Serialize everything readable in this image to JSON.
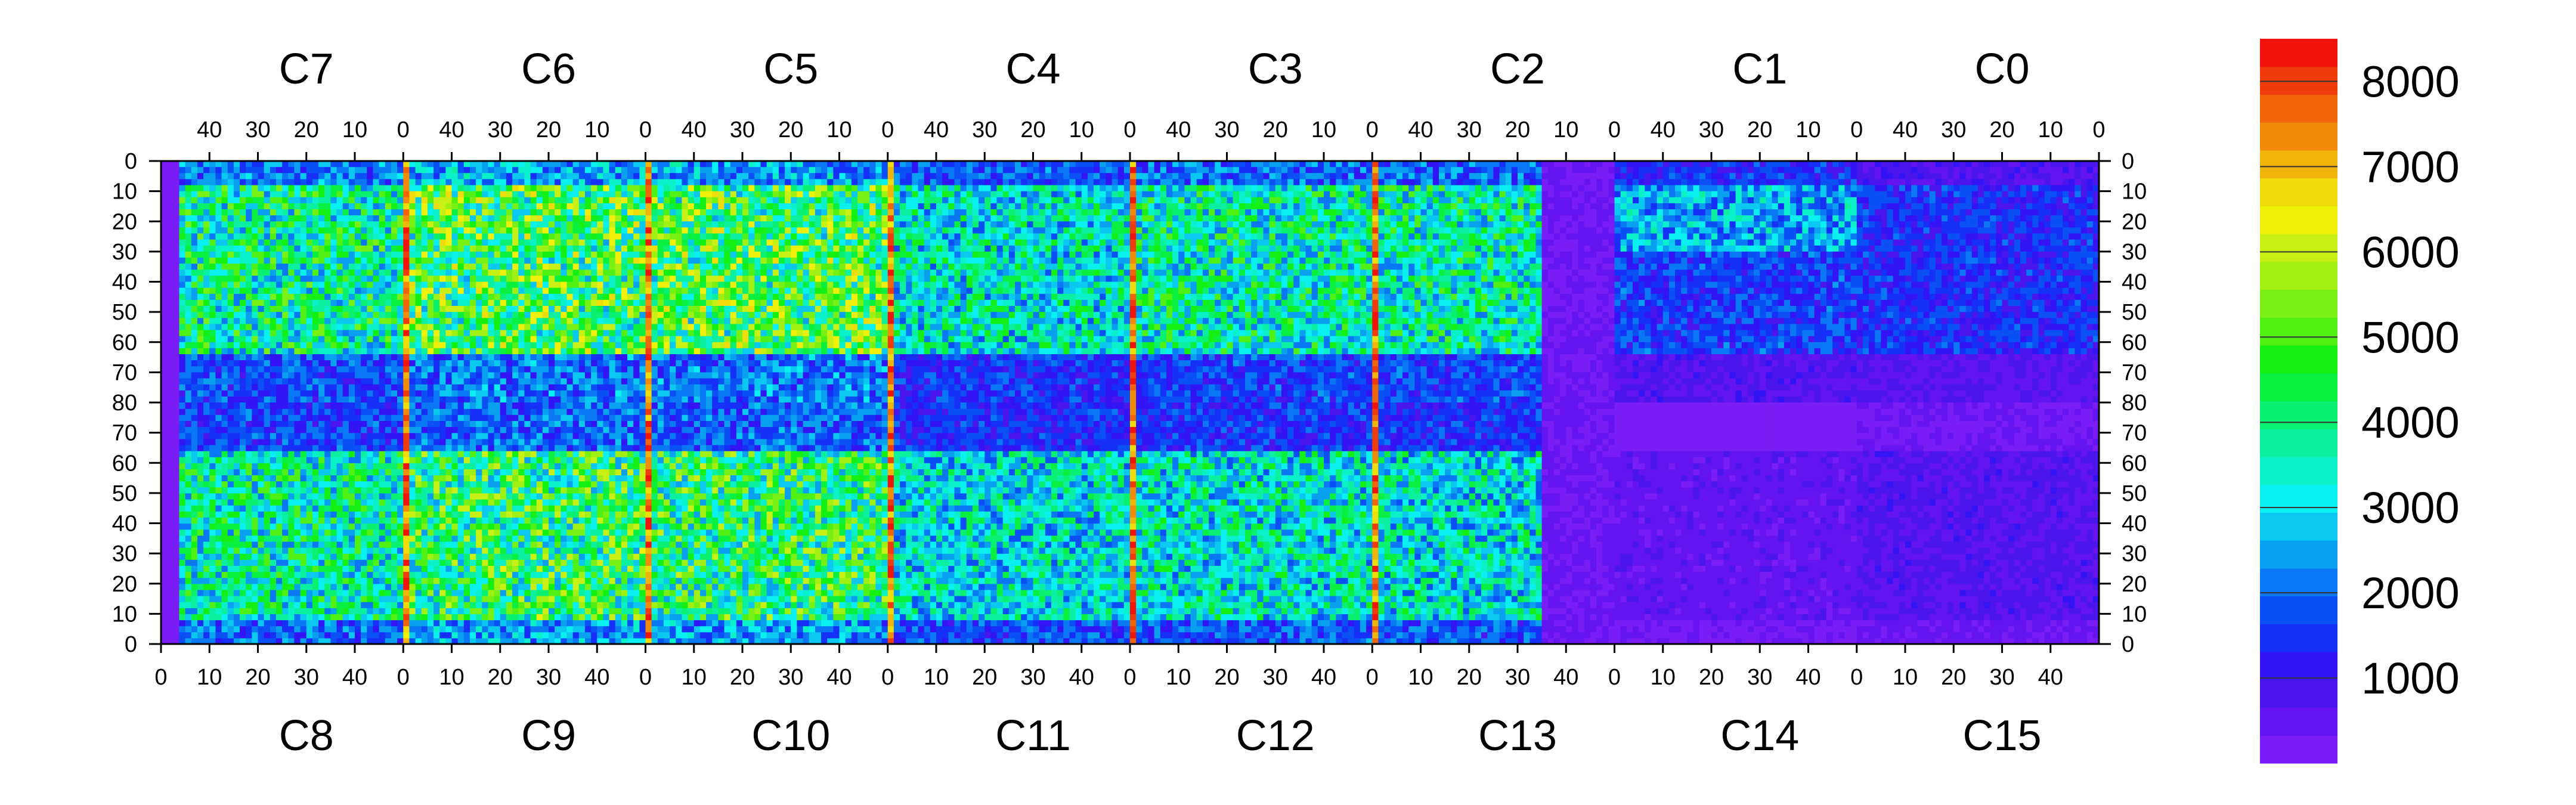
{
  "chart_data": {
    "type": "heatmap",
    "title": "",
    "colorbar": {
      "min": 0,
      "max": 8500,
      "tick_labels": [
        "1000",
        "2000",
        "3000",
        "4000",
        "5000",
        "6000",
        "7000",
        "8000"
      ],
      "tick_values": [
        1000,
        2000,
        3000,
        4000,
        5000,
        6000,
        7000,
        8000
      ],
      "colors": [
        "#7a1cf5",
        "#6414f0",
        "#4b16ee",
        "#3214f5",
        "#1630f8",
        "#0a50f5",
        "#0a78f5",
        "#0aa0f0",
        "#0ac8f0",
        "#0af0f0",
        "#0af0c8",
        "#0af0a0",
        "#0af070",
        "#0af040",
        "#14f014",
        "#50f014",
        "#78f014",
        "#a0f014",
        "#c8f014",
        "#f0f00a",
        "#f0dc0a",
        "#f0b40a",
        "#f08c0a",
        "#f0640a",
        "#f03c0a",
        "#f0140a"
      ]
    },
    "top_modules": [
      "C7",
      "C6",
      "C5",
      "C4",
      "C3",
      "C2",
      "C1",
      "C0"
    ],
    "bottom_modules": [
      "C8",
      "C9",
      "C10",
      "C11",
      "C12",
      "C13",
      "C14",
      "C15"
    ],
    "top_tick_labels": [
      "40",
      "30",
      "20",
      "10",
      "0"
    ],
    "bottom_tick_labels": [
      "0",
      "10",
      "20",
      "30",
      "40"
    ],
    "y_tick_labels": [
      "0",
      "10",
      "20",
      "30",
      "40",
      "50",
      "60",
      "70",
      "80",
      "70",
      "60",
      "50",
      "40",
      "30",
      "20",
      "10",
      "0"
    ],
    "regions": {
      "hot_columns_module_boundaries": [
        1,
        2,
        3,
        4,
        5
      ],
      "low_modules": [
        "C13",
        "C14",
        "C15",
        "C1",
        "C0"
      ],
      "cold_band_rows": "65-80 (both halves)"
    }
  }
}
